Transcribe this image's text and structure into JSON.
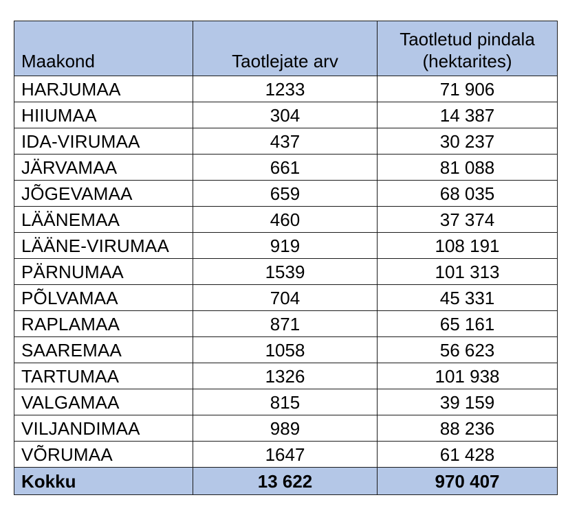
{
  "table": {
    "headers": [
      "Maakond",
      "Taotlejate arv",
      "Taotletud pindala\n(hektarites)"
    ],
    "header_line1": "Taotletud pindala",
    "header_line2": "(hektarites)",
    "rows": [
      [
        "HARJUMAA",
        "1233",
        "71 906"
      ],
      [
        "HIIUMAA",
        "304",
        "14 387"
      ],
      [
        "IDA-VIRUMAA",
        "437",
        "30 237"
      ],
      [
        "JÄRVAMAA",
        "661",
        "81 088"
      ],
      [
        "JÕGEVAMAA",
        "659",
        "68 035"
      ],
      [
        "LÄÄNEMAA",
        "460",
        "37 374"
      ],
      [
        "LÄÄNE-VIRUMAA",
        "919",
        "108 191"
      ],
      [
        "PÄRNUMAA",
        "1539",
        "101 313"
      ],
      [
        "PÕLVAMAA",
        "704",
        "45 331"
      ],
      [
        "RAPLAMAA",
        "871",
        "65 161"
      ],
      [
        "SAAREMAA",
        "1058",
        "56 623"
      ],
      [
        "TARTUMAA",
        "1326",
        "101 938"
      ],
      [
        "VALGAMAA",
        "815",
        "39 159"
      ],
      [
        "VILJANDIMAA",
        "989",
        "88 236"
      ],
      [
        "VÕRUMAA",
        "1647",
        "61 428"
      ]
    ],
    "total": [
      "Kokku",
      "13 622",
      "970 407"
    ]
  },
  "colors": {
    "header_bg": "#b4c7e7",
    "border": "#1a1a1a"
  }
}
